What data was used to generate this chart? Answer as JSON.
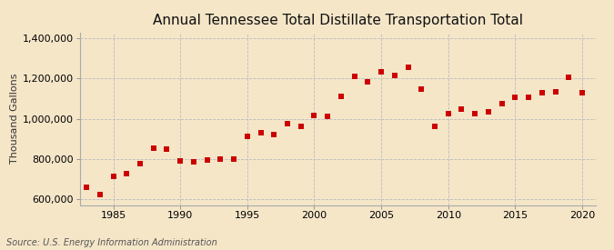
{
  "title": "Annual Tennessee Total Distillate Transportation Total",
  "ylabel": "Thousand Gallons",
  "source": "Source: U.S. Energy Information Administration",
  "background_color": "#f5e6c8",
  "plot_background_color": "#f5e6c8",
  "marker_color": "#cc0000",
  "marker_size": 4,
  "years": [
    1983,
    1984,
    1985,
    1986,
    1987,
    1988,
    1989,
    1990,
    1991,
    1992,
    1993,
    1994,
    1995,
    1996,
    1997,
    1998,
    1999,
    2000,
    2001,
    2002,
    2003,
    2004,
    2005,
    2006,
    2007,
    2008,
    2009,
    2010,
    2011,
    2012,
    2013,
    2014,
    2015,
    2016,
    2017,
    2018,
    2019,
    2020
  ],
  "values": [
    660000,
    620000,
    715000,
    725000,
    775000,
    855000,
    850000,
    790000,
    785000,
    795000,
    800000,
    800000,
    910000,
    930000,
    920000,
    975000,
    960000,
    1015000,
    1010000,
    1110000,
    1210000,
    1185000,
    1235000,
    1215000,
    1255000,
    1150000,
    960000,
    1025000,
    1050000,
    1025000,
    1035000,
    1075000,
    1105000,
    1105000,
    1130000,
    1135000,
    1205000,
    1130000
  ],
  "ylim": [
    570000,
    1430000
  ],
  "xlim": [
    1982.5,
    2021
  ],
  "yticks": [
    600000,
    800000,
    1000000,
    1200000,
    1400000
  ],
  "xticks": [
    1985,
    1990,
    1995,
    2000,
    2005,
    2010,
    2015,
    2020
  ],
  "grid_color": "#bbbbbb",
  "title_fontsize": 11,
  "label_fontsize": 8,
  "tick_fontsize": 8,
  "source_fontsize": 7
}
